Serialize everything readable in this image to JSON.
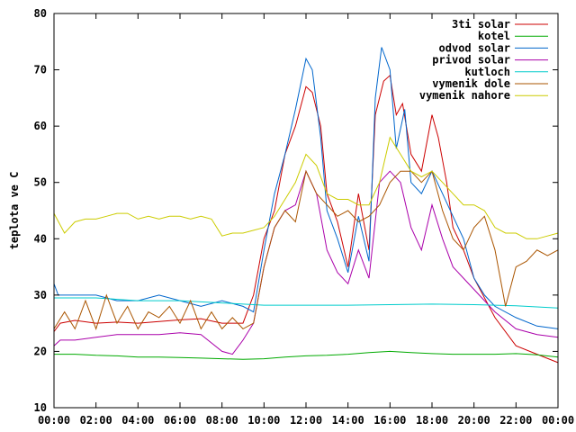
{
  "chart_data": {
    "type": "line",
    "title": "",
    "xlabel": "",
    "ylabel": "teplota ve C",
    "xlim": [
      0,
      24
    ],
    "ylim": [
      10,
      80
    ],
    "xticks": [
      0,
      2,
      4,
      6,
      8,
      10,
      12,
      14,
      16,
      18,
      20,
      22,
      24
    ],
    "xtick_labels": [
      "00:00",
      "02:00",
      "04:00",
      "06:00",
      "08:00",
      "10:00",
      "12:00",
      "14:00",
      "16:00",
      "18:00",
      "20:00",
      "22:00",
      "00:00"
    ],
    "yticks": [
      10,
      20,
      30,
      40,
      50,
      60,
      70,
      80
    ],
    "ytick_labels": [
      "10",
      "20",
      "30",
      "40",
      "50",
      "60",
      "70",
      "80"
    ],
    "grid": false,
    "legend_position": "top-right",
    "series": [
      {
        "name": "3ti solar",
        "color": "#cc0000",
        "x": [
          0,
          0.3,
          1,
          2,
          3,
          4,
          5,
          6,
          7,
          8,
          9,
          9.5,
          10,
          10.5,
          11,
          11.5,
          12,
          12.3,
          12.7,
          13,
          13.5,
          14,
          14.5,
          15,
          15.3,
          15.7,
          16,
          16.3,
          16.6,
          17,
          17.5,
          18,
          18.3,
          18.7,
          19,
          19.5,
          20,
          21,
          22,
          23,
          24
        ],
        "y": [
          23.5,
          25,
          25.5,
          25,
          25.2,
          25,
          25.3,
          25.6,
          25.8,
          25,
          25,
          30,
          40,
          45,
          55,
          60,
          67,
          66,
          60,
          48,
          43,
          35,
          48,
          38,
          62,
          68,
          69,
          62,
          64,
          55,
          52,
          62,
          58,
          50,
          42,
          38,
          33,
          26,
          21,
          19.5,
          18
        ]
      },
      {
        "name": "kotel",
        "color": "#00aa00",
        "x": [
          0,
          1,
          2,
          3,
          4,
          5,
          6,
          7,
          8,
          9,
          10,
          11,
          12,
          13,
          14,
          15,
          16,
          17,
          18,
          19,
          20,
          21,
          22,
          23,
          24
        ],
        "y": [
          19.5,
          19.5,
          19.3,
          19.2,
          19,
          19,
          18.9,
          18.8,
          18.7,
          18.6,
          18.7,
          19,
          19.2,
          19.3,
          19.5,
          19.8,
          20,
          19.8,
          19.6,
          19.5,
          19.5,
          19.5,
          19.6,
          19.4,
          19
        ]
      },
      {
        "name": "odvod solar",
        "color": "#0066cc",
        "x": [
          0,
          0.2,
          1,
          2,
          3,
          4,
          5,
          6,
          7,
          8,
          9,
          9.5,
          10,
          10.5,
          11,
          11.5,
          12,
          12.3,
          12.7,
          13,
          13.5,
          14,
          14.5,
          15,
          15.3,
          15.6,
          16,
          16.3,
          16.7,
          17,
          17.5,
          18,
          18.5,
          19,
          19.5,
          20,
          20.5,
          21,
          22,
          23,
          24
        ],
        "y": [
          32,
          30,
          30,
          30,
          29,
          29,
          30,
          29,
          28,
          29,
          28,
          27,
          38,
          48,
          55,
          63,
          72,
          70,
          58,
          45,
          40,
          34,
          44,
          36,
          65,
          74,
          70,
          56,
          63,
          50,
          48,
          52,
          48,
          44,
          40,
          33,
          30,
          28,
          26,
          24.5,
          24
        ]
      },
      {
        "name": "privod solar",
        "color": "#aa00aa",
        "x": [
          0,
          0.3,
          1,
          2,
          3,
          4,
          5,
          6,
          7,
          8,
          8.5,
          9,
          9.5,
          10,
          10.5,
          11,
          11.5,
          12,
          12.5,
          13,
          13.5,
          14,
          14.5,
          15,
          15.5,
          16,
          16.5,
          17,
          17.5,
          18,
          18.5,
          19,
          19.5,
          20,
          21,
          22,
          23,
          24
        ],
        "y": [
          21,
          22,
          22,
          22.5,
          23,
          23,
          23,
          23.3,
          23,
          20,
          19.5,
          22,
          25,
          35,
          42,
          45,
          46,
          52,
          48,
          38,
          34,
          32,
          38,
          33,
          50,
          52,
          50,
          42,
          38,
          46,
          40,
          35,
          33,
          31,
          27,
          24,
          23,
          22.5
        ]
      },
      {
        "name": "kutloch",
        "color": "#00cccc",
        "x": [
          0,
          2,
          4,
          6,
          8,
          10,
          12,
          14,
          16,
          18,
          20,
          22,
          24
        ],
        "y": [
          29.5,
          29.5,
          29,
          29,
          28.6,
          28.2,
          28.2,
          28.2,
          28.3,
          28.4,
          28.3,
          28.1,
          27.7
        ]
      },
      {
        "name": "vymenik dole",
        "color": "#aa5500",
        "x": [
          0,
          0.5,
          1,
          1.5,
          2,
          2.5,
          3,
          3.5,
          4,
          4.5,
          5,
          5.5,
          6,
          6.5,
          7,
          7.5,
          8,
          8.5,
          9,
          9.5,
          10,
          10.5,
          11,
          11.5,
          12,
          12.5,
          13,
          13.5,
          14,
          14.5,
          15,
          15.5,
          16,
          16.5,
          17,
          17.5,
          18,
          18.5,
          19,
          19.5,
          20,
          20.5,
          21,
          21.5,
          22,
          22.5,
          23,
          23.5,
          24
        ],
        "y": [
          24,
          27,
          24,
          29,
          24,
          30,
          25,
          28,
          24,
          27,
          26,
          28,
          25,
          29,
          24,
          27,
          24,
          26,
          24,
          25,
          35,
          42,
          45,
          43,
          52,
          48,
          46,
          44,
          45,
          43,
          44,
          46,
          50,
          52,
          52,
          50,
          52,
          45,
          40,
          38,
          42,
          44,
          38,
          28,
          35,
          36,
          38,
          37,
          38
        ]
      },
      {
        "name": "vymenik nahore",
        "color": "#cccc00",
        "x": [
          0,
          0.5,
          1,
          1.5,
          2,
          2.5,
          3,
          3.5,
          4,
          4.5,
          5,
          5.5,
          6,
          6.5,
          7,
          7.5,
          8,
          8.5,
          9,
          9.5,
          10,
          10.5,
          11,
          11.5,
          12,
          12.5,
          13,
          13.5,
          14,
          14.5,
          15,
          15.5,
          16,
          16.5,
          17,
          17.5,
          18,
          18.5,
          19,
          19.5,
          20,
          20.5,
          21,
          21.5,
          22,
          22.5,
          23,
          23.5,
          24
        ],
        "y": [
          44.5,
          41,
          43,
          43.5,
          43.5,
          44,
          44.5,
          44.5,
          43.5,
          44,
          43.5,
          44,
          44,
          43.5,
          44,
          43.5,
          40.5,
          41,
          41,
          41.5,
          42,
          44,
          47,
          50,
          55,
          53,
          48,
          47,
          47,
          46,
          46,
          50,
          58,
          55,
          52,
          51,
          52,
          50,
          48,
          46,
          46,
          45,
          42,
          41,
          41,
          40,
          40,
          40.5,
          41
        ]
      }
    ]
  }
}
